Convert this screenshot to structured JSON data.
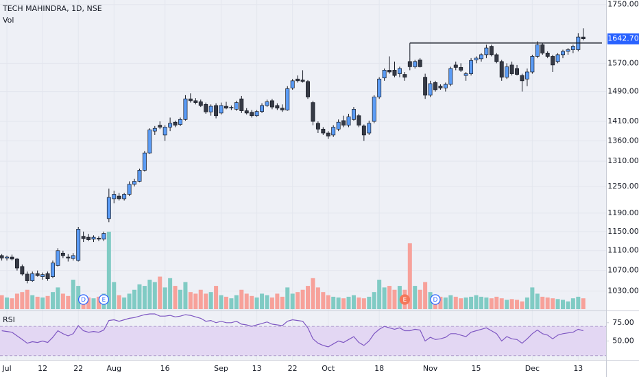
{
  "chart_data": {
    "type": "candlestick",
    "title": "TECH MAHINDRA, 1D, NSE",
    "volume_label": "Vol",
    "log_scale": true,
    "grid": true,
    "categories": [
      null,
      "Jul",
      null,
      null,
      null,
      null,
      null,
      null,
      "12",
      null,
      null,
      null,
      null,
      null,
      null,
      "22",
      null,
      null,
      null,
      null,
      null,
      null,
      "Aug",
      null,
      null,
      null,
      null,
      null,
      null,
      null,
      null,
      null,
      "16",
      null,
      null,
      null,
      null,
      null,
      null,
      null,
      null,
      null,
      null,
      "Sep",
      null,
      null,
      null,
      null,
      null,
      null,
      "13",
      null,
      null,
      null,
      null,
      null,
      null,
      "22",
      null,
      null,
      null,
      null,
      null,
      null,
      "Oct",
      null,
      null,
      null,
      null,
      null,
      null,
      null,
      null,
      null,
      "18",
      null,
      null,
      null,
      null,
      null,
      null,
      null,
      null,
      null,
      "Nov",
      null,
      null,
      null,
      null,
      null,
      null,
      null,
      null,
      "15",
      null,
      null,
      null,
      null,
      null,
      null,
      null,
      null,
      null,
      null,
      "Dec",
      null,
      null,
      null,
      null,
      null,
      null,
      null,
      null,
      "13",
      null
    ],
    "open": [
      1100,
      1095,
      1097,
      1093,
      1078,
      1063,
      1050,
      1064,
      1058,
      1064,
      1058,
      1080,
      1105,
      1097,
      1094,
      1090,
      1140,
      1138,
      1134,
      1136,
      1134,
      1178,
      1222,
      1228,
      1222,
      1232,
      1255,
      1262,
      1288,
      1330,
      1385,
      1400,
      1375,
      1395,
      1408,
      1402,
      1415,
      1470,
      1465,
      1462,
      1455,
      1435,
      1452,
      1432,
      1450,
      1446,
      1442,
      1470,
      1438,
      1434,
      1425,
      1436,
      1452,
      1465,
      1452,
      1445,
      1440,
      1500,
      1525,
      1522,
      1518,
      1460,
      1405,
      1390,
      1380,
      1375,
      1390,
      1412,
      1400,
      1415,
      1425,
      1398,
      1380,
      1410,
      1475,
      1528,
      1550,
      1550,
      1540,
      1538,
      1575,
      1560,
      1580,
      1530,
      1480,
      1515,
      1505,
      1500,
      1510,
      1565,
      1558,
      1535,
      1540,
      1580,
      1583,
      1595,
      1620,
      1595,
      1575,
      1530,
      1565,
      1555,
      1535,
      1525,
      1545,
      1590,
      1625,
      1600,
      1590,
      1575,
      1595,
      1605,
      1610,
      1610,
      1648
    ],
    "high": [
      1103,
      1100,
      1102,
      1095,
      1082,
      1068,
      1068,
      1070,
      1066,
      1068,
      1090,
      1115,
      1110,
      1103,
      1105,
      1160,
      1150,
      1145,
      1142,
      1140,
      1150,
      1245,
      1240,
      1235,
      1235,
      1262,
      1268,
      1292,
      1335,
      1392,
      1398,
      1410,
      1400,
      1420,
      1412,
      1420,
      1480,
      1485,
      1472,
      1468,
      1460,
      1455,
      1458,
      1460,
      1462,
      1452,
      1465,
      1478,
      1445,
      1440,
      1440,
      1458,
      1468,
      1470,
      1458,
      1455,
      1505,
      1525,
      1535,
      1550,
      1522,
      1465,
      1410,
      1395,
      1385,
      1400,
      1415,
      1425,
      1430,
      1448,
      1430,
      1402,
      1412,
      1480,
      1530,
      1555,
      1590,
      1575,
      1560,
      1545,
      1585,
      1580,
      1585,
      1540,
      1520,
      1520,
      1510,
      1515,
      1560,
      1575,
      1570,
      1545,
      1585,
      1590,
      1600,
      1625,
      1625,
      1600,
      1580,
      1570,
      1575,
      1565,
      1540,
      1555,
      1595,
      1635,
      1630,
      1605,
      1595,
      1600,
      1610,
      1615,
      1625,
      1660,
      1675
    ],
    "low": [
      1090,
      1090,
      1090,
      1070,
      1060,
      1045,
      1048,
      1058,
      1052,
      1050,
      1055,
      1078,
      1095,
      1088,
      1090,
      1088,
      1128,
      1130,
      1128,
      1130,
      1130,
      1170,
      1212,
      1218,
      1218,
      1228,
      1250,
      1260,
      1285,
      1328,
      1375,
      1390,
      1360,
      1385,
      1395,
      1398,
      1412,
      1460,
      1455,
      1448,
      1430,
      1425,
      1418,
      1428,
      1442,
      1440,
      1438,
      1432,
      1428,
      1420,
      1422,
      1432,
      1448,
      1442,
      1440,
      1435,
      1438,
      1495,
      1515,
      1515,
      1470,
      1400,
      1380,
      1375,
      1365,
      1370,
      1385,
      1395,
      1395,
      1412,
      1395,
      1360,
      1375,
      1405,
      1470,
      1520,
      1540,
      1530,
      1530,
      1520,
      1550,
      1555,
      1558,
      1470,
      1475,
      1490,
      1495,
      1490,
      1505,
      1550,
      1545,
      1520,
      1535,
      1570,
      1575,
      1585,
      1590,
      1570,
      1520,
      1525,
      1535,
      1535,
      1490,
      1505,
      1540,
      1585,
      1595,
      1585,
      1545,
      1570,
      1585,
      1595,
      1600,
      1605,
      1638
    ],
    "close": [
      1095,
      1097,
      1093,
      1075,
      1063,
      1050,
      1064,
      1060,
      1062,
      1054,
      1085,
      1110,
      1100,
      1095,
      1100,
      1155,
      1135,
      1133,
      1138,
      1134,
      1146,
      1225,
      1232,
      1222,
      1232,
      1255,
      1262,
      1288,
      1330,
      1388,
      1392,
      1395,
      1395,
      1405,
      1400,
      1415,
      1470,
      1465,
      1460,
      1452,
      1435,
      1450,
      1425,
      1452,
      1445,
      1447,
      1460,
      1438,
      1432,
      1425,
      1436,
      1452,
      1462,
      1448,
      1445,
      1440,
      1498,
      1520,
      1520,
      1518,
      1475,
      1410,
      1390,
      1380,
      1372,
      1395,
      1408,
      1400,
      1422,
      1442,
      1400,
      1375,
      1405,
      1475,
      1525,
      1550,
      1545,
      1535,
      1555,
      1530,
      1560,
      1575,
      1560,
      1480,
      1512,
      1495,
      1500,
      1510,
      1555,
      1558,
      1550,
      1540,
      1578,
      1585,
      1595,
      1615,
      1595,
      1575,
      1530,
      1560,
      1540,
      1538,
      1520,
      1545,
      1590,
      1625,
      1600,
      1590,
      1565,
      1595,
      1605,
      1610,
      1620,
      1648,
      1642.7
    ],
    "up_color": "#5b9cf6",
    "down_color": "#363a45",
    "ylim": [
      995,
      1765
    ],
    "yticks": [
      {
        "value": 1750,
        "label": "1750.00"
      },
      {
        "value": 1570,
        "label": "1570.00"
      },
      {
        "value": 1490,
        "label": "1490.00"
      },
      {
        "value": 1410,
        "label": "1410.00"
      },
      {
        "value": 1360,
        "label": "1360.00"
      },
      {
        "value": 1310,
        "label": "1310.00"
      },
      {
        "value": 1250,
        "label": "1250.00"
      },
      {
        "value": 1190,
        "label": "1190.00"
      },
      {
        "value": 1150,
        "label": "1150.00"
      },
      {
        "value": 1110,
        "label": "1110.00"
      },
      {
        "value": 1070,
        "label": "1070.00"
      },
      {
        "value": 1030,
        "label": "1030.00"
      }
    ],
    "last_label": "1642.70",
    "last_color": "#2962ff",
    "resistance": 1630,
    "resistance_start": 80,
    "volume": {
      "values": [
        18,
        15,
        14,
        20,
        22,
        25,
        18,
        16,
        15,
        17,
        22,
        28,
        20,
        17,
        38,
        30,
        18,
        15,
        14,
        16,
        20,
        100,
        35,
        18,
        15,
        20,
        25,
        32,
        30,
        38,
        35,
        42,
        28,
        40,
        30,
        25,
        35,
        22,
        20,
        25,
        20,
        22,
        30,
        18,
        16,
        14,
        18,
        25,
        20,
        17,
        15,
        20,
        18,
        15,
        20,
        16,
        28,
        20,
        22,
        25,
        30,
        40,
        28,
        22,
        18,
        16,
        15,
        14,
        16,
        18,
        15,
        14,
        16,
        22,
        38,
        28,
        30,
        25,
        30,
        25,
        85,
        30,
        25,
        35,
        22,
        18,
        16,
        15,
        18,
        16,
        14,
        15,
        16,
        18,
        16,
        15,
        14,
        16,
        14,
        12,
        13,
        12,
        10,
        15,
        28,
        20,
        16,
        15,
        14,
        13,
        12,
        10,
        14,
        16,
        14
      ],
      "vlim": [
        0,
        100
      ],
      "up_color": "#80cbc4",
      "down_color": "#f7a19a"
    },
    "events": [
      {
        "index": 16,
        "label": "D",
        "color": "#2962ff"
      },
      {
        "index": 20,
        "label": "E",
        "color": "#2962ff"
      },
      {
        "index": 79,
        "label": "E",
        "color": "#f4775a"
      },
      {
        "index": 85,
        "label": "D",
        "color": "#2962ff"
      }
    ],
    "rsi": {
      "label": "RSI",
      "values": [
        64,
        63,
        62,
        57,
        52,
        47,
        49,
        48,
        50,
        48,
        55,
        64,
        60,
        57,
        60,
        71,
        64,
        62,
        63,
        62,
        65,
        78,
        79,
        77,
        79,
        81,
        82,
        84,
        86,
        87,
        87,
        84,
        84,
        85,
        83,
        84,
        86,
        85,
        83,
        81,
        77,
        78,
        75,
        77,
        75,
        75,
        77,
        73,
        72,
        70,
        72,
        74,
        76,
        73,
        72,
        71,
        77,
        79,
        78,
        77,
        68,
        53,
        47,
        44,
        42,
        46,
        50,
        48,
        52,
        56,
        48,
        44,
        50,
        60,
        66,
        70,
        68,
        66,
        68,
        64,
        64,
        66,
        65,
        50,
        55,
        52,
        53,
        55,
        60,
        60,
        58,
        56,
        62,
        64,
        66,
        68,
        64,
        60,
        50,
        56,
        53,
        52,
        47,
        53,
        60,
        65,
        60,
        58,
        53,
        58,
        60,
        61,
        62,
        66,
        64
      ],
      "ylim": [
        27,
        87
      ],
      "yticks": [
        {
          "value": 75,
          "label": "75.00"
        },
        {
          "value": 50,
          "label": "50.00"
        }
      ],
      "band": [
        30,
        70
      ],
      "color": "#7e57c2",
      "band_color": "#e3d7f3"
    }
  }
}
